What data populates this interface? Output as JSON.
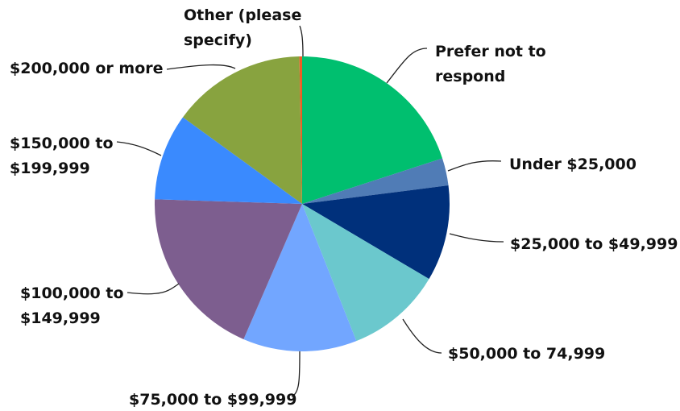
{
  "chart_data": {
    "type": "pie",
    "start": "12 o'clock",
    "direction": "clockwise",
    "slices": [
      {
        "label": "Prefer not to respond",
        "value": 20.0,
        "color": "#00bf6f"
      },
      {
        "label": "Under $25,000",
        "value": 3.0,
        "color": "#507cb6"
      },
      {
        "label": "$25,000 to $49,999",
        "value": 10.5,
        "color": "#00307b"
      },
      {
        "label": "$50,000 to 74,999",
        "value": 10.5,
        "color": "#6bc8cd"
      },
      {
        "label": "$75,000 to $99,999",
        "value": 12.5,
        "color": "#72a6ff"
      },
      {
        "label": "$100,000 to $149,999",
        "value": 19.0,
        "color": "#7d5e8f"
      },
      {
        "label": "$150,000 to $199,999",
        "value": 9.5,
        "color": "#3a8afe"
      },
      {
        "label": "$200,000 or more",
        "value": 14.7,
        "color": "#88a33f"
      },
      {
        "label": "Other (please specify)",
        "value": 0.3,
        "color": "#f05b24"
      }
    ]
  }
}
